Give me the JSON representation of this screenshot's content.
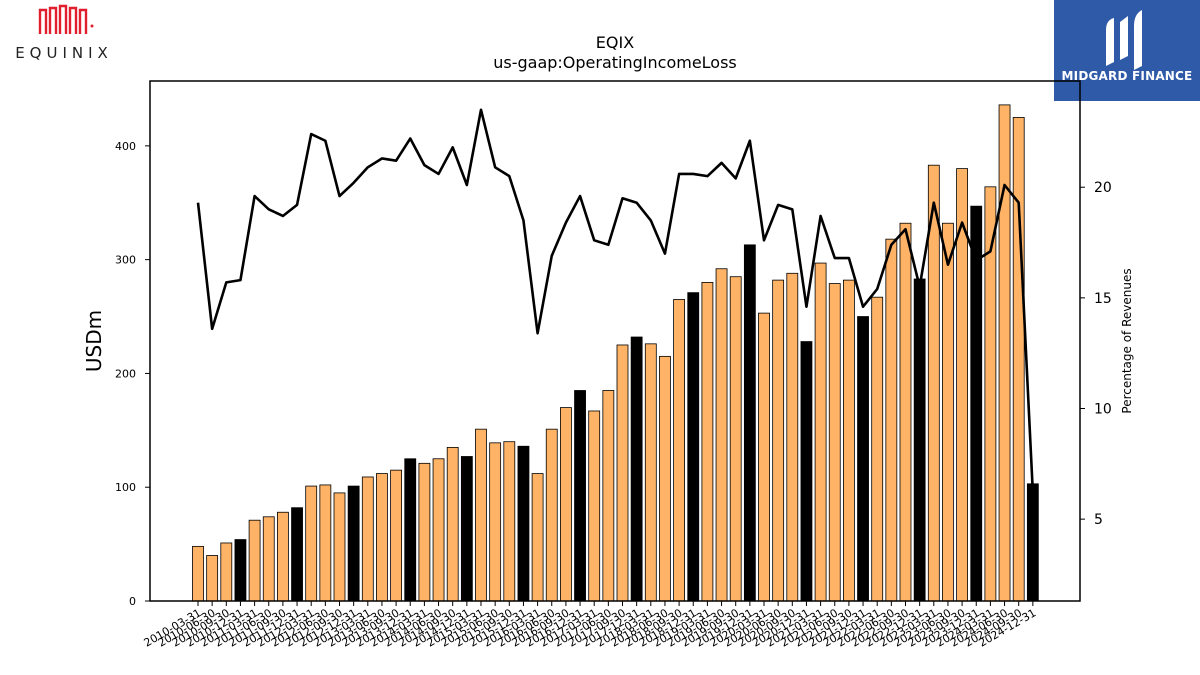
{
  "logos": {
    "left_brand": "EQUINIX",
    "right_brand": "MIDGARD FINANCE",
    "left_icon": "equinix-logo-icon",
    "right_icon": "midgard-logo-icon"
  },
  "colors": {
    "bar_default": "#ffb366",
    "bar_highlight": "#000000",
    "line": "#000000",
    "equinix_red": "#e01e2e",
    "midgard_blue": "#2f5aa8"
  },
  "chart_data": {
    "type": "bar",
    "title": "EQIX",
    "subtitle": "us-gaap:OperatingIncomeLoss",
    "ylabel": "USDm",
    "y2label": "Percentage of Revenues",
    "ylim": [
      0,
      457
    ],
    "y2lim": [
      1.3,
      24.8
    ],
    "yticks": [
      0,
      100,
      200,
      300,
      400
    ],
    "y2ticks": [
      5,
      10,
      15,
      20
    ],
    "grid": false,
    "legend": "none",
    "categories": [
      "2010-03-31",
      "2010-06-30",
      "2010-09-30",
      "2010-12-31",
      "2011-03-31",
      "2011-06-30",
      "2011-09-30",
      "2011-12-31",
      "2012-03-31",
      "2012-06-30",
      "2012-09-30",
      "2012-12-31",
      "2013-03-31",
      "2013-06-30",
      "2013-09-30",
      "2013-12-31",
      "2014-03-31",
      "2014-06-30",
      "2014-09-30",
      "2014-12-31",
      "2015-03-31",
      "2015-06-30",
      "2015-09-30",
      "2015-12-31",
      "2016-03-31",
      "2016-06-30",
      "2016-09-30",
      "2016-12-31",
      "2017-03-31",
      "2017-06-30",
      "2017-09-30",
      "2017-12-31",
      "2018-03-31",
      "2018-06-30",
      "2018-09-30",
      "2018-12-31",
      "2019-03-31",
      "2019-06-30",
      "2019-09-30",
      "2019-12-31",
      "2020-03-31",
      "2020-06-30",
      "2020-09-30",
      "2020-12-31",
      "2021-03-31",
      "2021-06-30",
      "2021-09-30",
      "2021-12-31",
      "2022-03-31",
      "2022-06-30",
      "2022-09-30",
      "2022-12-31",
      "2023-03-31",
      "2023-06-30",
      "2023-09-30",
      "2023-12-31",
      "2024-03-31",
      "2024-06-30",
      "2024-09-30",
      "2024-12-31"
    ],
    "series": [
      {
        "type": "bar",
        "values": [
          48,
          40,
          51,
          54,
          71,
          74,
          78,
          82,
          101,
          102,
          95,
          101,
          109,
          112,
          115,
          125,
          121,
          125,
          135,
          127,
          151,
          139,
          140,
          136,
          112,
          151,
          170,
          185,
          167,
          185,
          225,
          232,
          226,
          215,
          265,
          271,
          280,
          292,
          285,
          313,
          253,
          282,
          288,
          228,
          297,
          279,
          282,
          250,
          267,
          318,
          332,
          283,
          383,
          332,
          380,
          347,
          364,
          436,
          425,
          103
        ],
        "highlight": [
          false,
          false,
          false,
          true,
          false,
          false,
          false,
          true,
          false,
          false,
          false,
          true,
          false,
          false,
          false,
          true,
          false,
          false,
          false,
          true,
          false,
          false,
          false,
          true,
          false,
          false,
          false,
          true,
          false,
          false,
          false,
          true,
          false,
          false,
          false,
          true,
          false,
          false,
          false,
          true,
          false,
          false,
          false,
          true,
          false,
          false,
          false,
          true,
          false,
          false,
          false,
          true,
          false,
          false,
          false,
          true,
          false,
          false,
          false,
          true
        ]
      },
      {
        "type": "line",
        "axis": "right",
        "values": [
          19.3,
          13.6,
          15.7,
          15.8,
          19.6,
          19.0,
          18.7,
          19.2,
          22.4,
          22.1,
          19.6,
          20.2,
          20.9,
          21.3,
          21.2,
          22.2,
          21.0,
          20.6,
          21.8,
          20.1,
          23.5,
          20.9,
          20.5,
          18.5,
          13.4,
          16.9,
          18.4,
          19.6,
          17.6,
          17.4,
          19.5,
          19.3,
          18.5,
          17.0,
          20.6,
          20.6,
          20.5,
          21.1,
          20.4,
          22.1,
          17.6,
          19.2,
          19.0,
          14.6,
          18.7,
          16.8,
          16.8,
          14.6,
          15.4,
          17.4,
          18.1,
          15.5,
          19.3,
          16.5,
          18.4,
          16.7,
          17.1,
          20.1,
          19.3,
          6.2
        ]
      }
    ]
  }
}
